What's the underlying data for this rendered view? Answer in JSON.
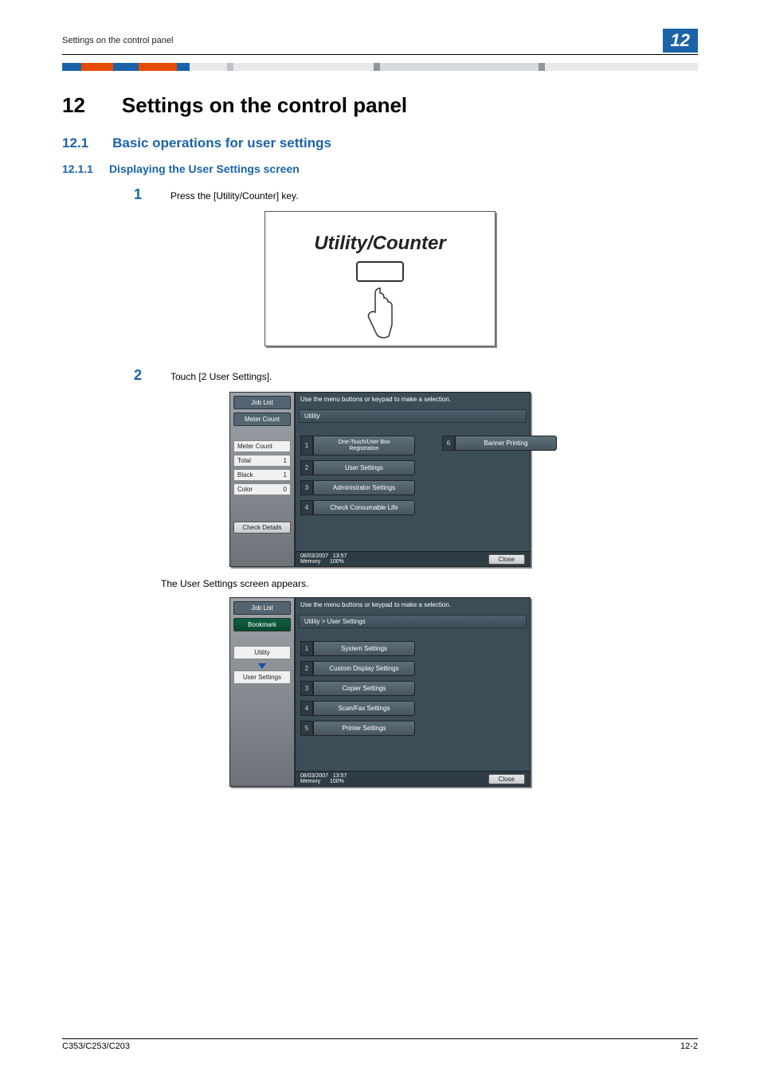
{
  "header": {
    "running_head": "Settings on the control panel",
    "chapter_badge": "12"
  },
  "decor_bar": {
    "segments": [
      {
        "width_pct": 3,
        "color": "#1b63a8"
      },
      {
        "width_pct": 5,
        "color": "#e54b00"
      },
      {
        "width_pct": 4,
        "color": "#1b63a8"
      },
      {
        "width_pct": 6,
        "color": "#e54b00"
      },
      {
        "width_pct": 2,
        "color": "#1b63a8"
      },
      {
        "width_pct": 6,
        "color": "#e6e8ea"
      },
      {
        "width_pct": 1,
        "color": "#bfc3c7"
      },
      {
        "width_pct": 22,
        "color": "#e6e8ea"
      },
      {
        "width_pct": 1,
        "color": "#8f959b"
      },
      {
        "width_pct": 25,
        "color": "#d7dadd"
      },
      {
        "width_pct": 1,
        "color": "#8f959b"
      },
      {
        "width_pct": 24,
        "color": "#e6e8ea"
      }
    ]
  },
  "h1": {
    "num": "12",
    "title": "Settings on the control panel"
  },
  "h2": {
    "num": "12.1",
    "title": "Basic operations for user settings"
  },
  "h3": {
    "num": "12.1.1",
    "title": "Displaying the User Settings screen"
  },
  "step1": {
    "num": "1",
    "text": "Press the [Utility/Counter] key."
  },
  "illus": {
    "title": "Utility/Counter"
  },
  "step2": {
    "num": "2",
    "text": "Touch [2 User Settings]."
  },
  "panel1": {
    "left_tab1": "Job List",
    "left_tab2": "Meter Count",
    "meter_label": "Meter Count",
    "total_label": "Total",
    "total_val": "1",
    "black_label": "Black",
    "black_val": "1",
    "color_label": "Color",
    "color_val": "0",
    "check_details": "Check Details",
    "instr": "Use the menu buttons or keypad to make a selection.",
    "breadcrumb": "Utility",
    "menu": [
      {
        "n": "1",
        "label": "One-Touch/User Box\nRegistration"
      },
      {
        "n": "2",
        "label": "User Settings"
      },
      {
        "n": "3",
        "label": "Administrator Settings"
      },
      {
        "n": "4",
        "label": "Check Consumable Life"
      }
    ],
    "menu_col2": [
      {
        "n": "6",
        "label": "Banner Printing"
      }
    ],
    "footer_date": "08/03/2007",
    "footer_time": "13:57",
    "footer_mem": "Memory",
    "footer_mem_val": "100%",
    "close": "Close"
  },
  "body_after": "The User Settings screen appears.",
  "panel2": {
    "left_tab1": "Job List",
    "left_tab2": "Bookmark",
    "crumb1": "Utility",
    "crumb2": "User Settings",
    "instr": "Use the menu buttons or keypad to make a selection.",
    "breadcrumb": "Utility > User Settings",
    "menu": [
      {
        "n": "1",
        "label": "System Settings"
      },
      {
        "n": "2",
        "label": "Custom Display Settings"
      },
      {
        "n": "3",
        "label": "Copier Settings"
      },
      {
        "n": "4",
        "label": "Scan/Fax Settings"
      },
      {
        "n": "5",
        "label": "Printer Settings"
      }
    ],
    "footer_date": "08/03/2007",
    "footer_time": "13:57",
    "footer_mem": "Memory",
    "footer_mem_val": "100%",
    "close": "Close"
  },
  "footer": {
    "left": "C353/C253/C203",
    "right": "12-2"
  }
}
